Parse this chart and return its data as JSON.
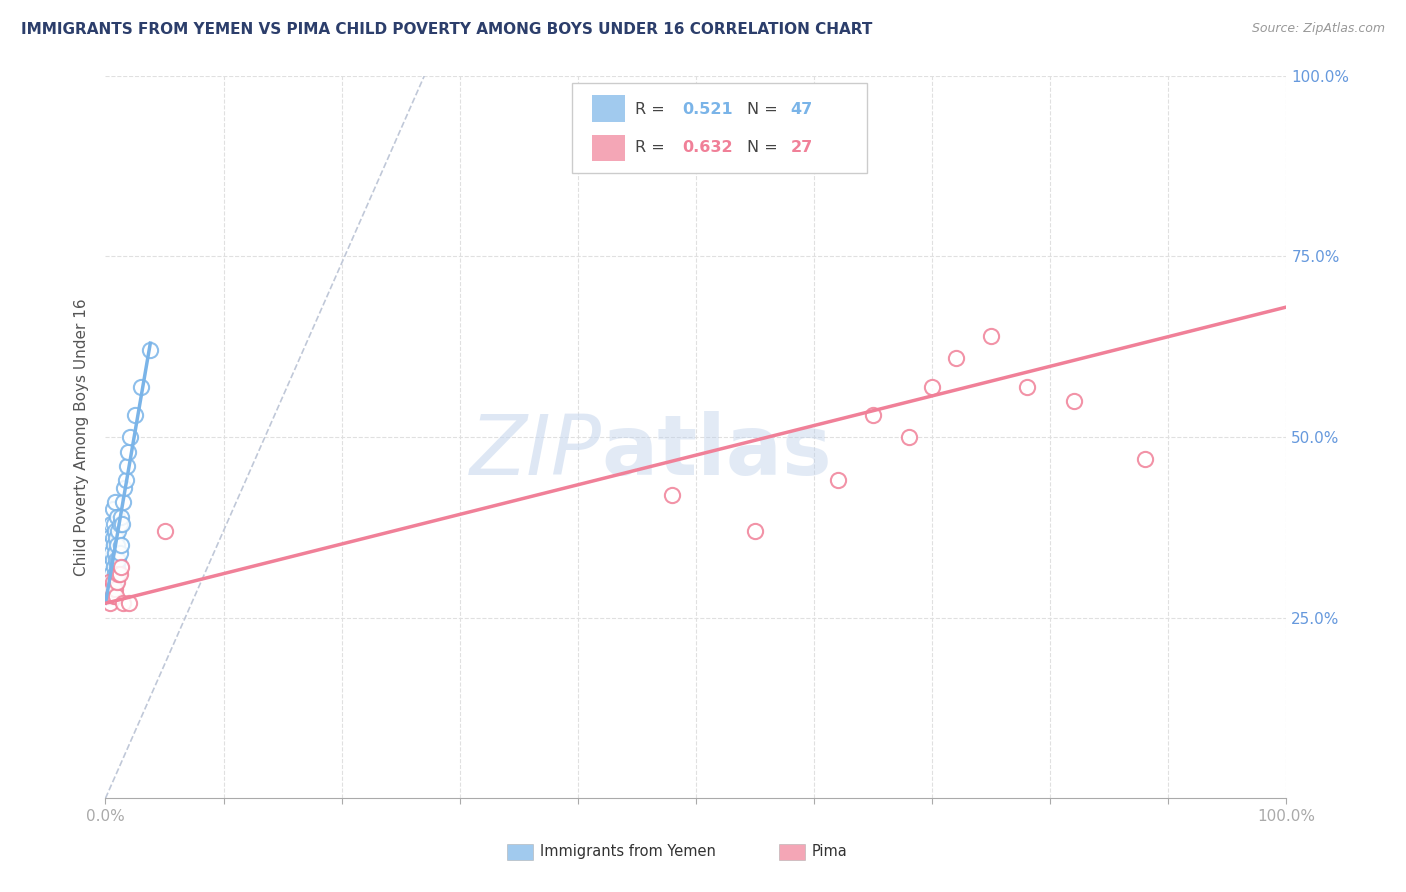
{
  "title": "IMMIGRANTS FROM YEMEN VS PIMA CHILD POVERTY AMONG BOYS UNDER 16 CORRELATION CHART",
  "source": "Source: ZipAtlas.com",
  "ylabel": "Child Poverty Among Boys Under 16",
  "xlim": [
    0,
    1.0
  ],
  "ylim": [
    0,
    1.0
  ],
  "title_color": "#2c3e6b",
  "source_color": "#999999",
  "blue_color": "#7ab4e8",
  "pink_color": "#f08098",
  "diag_color": "#c0c8d8",
  "grid_color": "#e0e0e0",
  "right_label_color": "#6699dd",
  "background_color": "#ffffff",
  "legend_R1": "0.521",
  "legend_N1": "47",
  "legend_R2": "0.632",
  "legend_N2": "27",
  "blue_scatter_x": [
    0.001,
    0.002,
    0.002,
    0.003,
    0.003,
    0.003,
    0.004,
    0.004,
    0.004,
    0.005,
    0.005,
    0.005,
    0.005,
    0.006,
    0.006,
    0.006,
    0.006,
    0.007,
    0.007,
    0.007,
    0.007,
    0.008,
    0.008,
    0.008,
    0.008,
    0.009,
    0.009,
    0.009,
    0.01,
    0.01,
    0.01,
    0.011,
    0.011,
    0.012,
    0.012,
    0.013,
    0.013,
    0.014,
    0.015,
    0.016,
    0.017,
    0.018,
    0.019,
    0.021,
    0.025,
    0.03,
    0.038
  ],
  "blue_scatter_y": [
    0.29,
    0.31,
    0.34,
    0.3,
    0.33,
    0.36,
    0.29,
    0.32,
    0.35,
    0.28,
    0.31,
    0.34,
    0.38,
    0.3,
    0.33,
    0.36,
    0.4,
    0.29,
    0.32,
    0.35,
    0.38,
    0.31,
    0.34,
    0.37,
    0.41,
    0.3,
    0.33,
    0.36,
    0.32,
    0.35,
    0.39,
    0.33,
    0.37,
    0.34,
    0.38,
    0.35,
    0.39,
    0.38,
    0.41,
    0.43,
    0.44,
    0.46,
    0.48,
    0.5,
    0.53,
    0.57,
    0.62
  ],
  "pink_scatter_x": [
    0.001,
    0.002,
    0.003,
    0.004,
    0.005,
    0.006,
    0.007,
    0.008,
    0.009,
    0.01,
    0.011,
    0.012,
    0.013,
    0.015,
    0.02,
    0.05,
    0.48,
    0.55,
    0.62,
    0.65,
    0.68,
    0.7,
    0.72,
    0.75,
    0.78,
    0.82,
    0.88
  ],
  "pink_scatter_y": [
    0.29,
    0.28,
    0.3,
    0.27,
    0.29,
    0.3,
    0.28,
    0.29,
    0.28,
    0.3,
    0.31,
    0.31,
    0.32,
    0.27,
    0.27,
    0.37,
    0.42,
    0.37,
    0.44,
    0.53,
    0.5,
    0.57,
    0.61,
    0.64,
    0.57,
    0.55,
    0.47
  ],
  "blue_line_x": [
    0.0,
    0.038
  ],
  "blue_line_y": [
    0.27,
    0.63
  ],
  "pink_line_x": [
    0.0,
    1.0
  ],
  "pink_line_y": [
    0.27,
    0.68
  ],
  "diag_line_x": [
    0.0,
    0.27
  ],
  "diag_line_y": [
    0.0,
    1.0
  ]
}
